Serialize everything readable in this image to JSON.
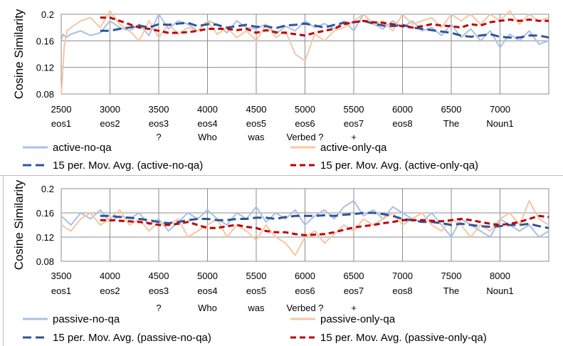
{
  "chart_data": [
    {
      "type": "line",
      "ylabel": "Cosine Similarity",
      "ylim": [
        0.08,
        0.2
      ],
      "y_ticks": [
        "0.08",
        "0.12",
        "0.16",
        "0.2"
      ],
      "xlim": [
        2500,
        7500
      ],
      "x_ticks": [
        "2500",
        "3000",
        "3500",
        "4000",
        "4500",
        "5000",
        "5500",
        "6000",
        "6500",
        "7000"
      ],
      "x_sublabels": [
        [
          "eos1",
          ""
        ],
        [
          "eos2",
          ""
        ],
        [
          "eos3",
          "?"
        ],
        [
          "eos4",
          "Who"
        ],
        [
          "eos5",
          "was"
        ],
        [
          "eos6",
          "Verbed ?"
        ],
        [
          "eos7",
          "+"
        ],
        [
          "eos8",
          ""
        ],
        [
          "The",
          ""
        ],
        [
          "Noun1",
          ""
        ]
      ],
      "grid": true,
      "legend_position": "bottom",
      "series": [
        {
          "name": "active-no-qa",
          "color": "#a9c1e3",
          "style": "solid",
          "x": [
            2500,
            2520,
            2550,
            2600,
            2700,
            2800,
            2900,
            3000,
            3100,
            3200,
            3300,
            3400,
            3500,
            3600,
            3700,
            3800,
            3900,
            4000,
            4100,
            4200,
            4300,
            4400,
            4500,
            4600,
            4700,
            4800,
            4900,
            5000,
            5100,
            5200,
            5300,
            5400,
            5500,
            5600,
            5700,
            5800,
            5900,
            6000,
            6100,
            6200,
            6300,
            6400,
            6500,
            6600,
            6700,
            6800,
            6900,
            7000,
            7100,
            7200,
            7300,
            7400,
            7500
          ],
          "values": [
            0.16,
            0.17,
            0.165,
            0.17,
            0.175,
            0.168,
            0.172,
            0.19,
            0.18,
            0.175,
            0.185,
            0.168,
            0.2,
            0.178,
            0.19,
            0.185,
            0.175,
            0.19,
            0.185,
            0.172,
            0.19,
            0.18,
            0.178,
            0.185,
            0.17,
            0.182,
            0.175,
            0.19,
            0.18,
            0.186,
            0.178,
            0.19,
            0.175,
            0.2,
            0.185,
            0.178,
            0.19,
            0.18,
            0.19,
            0.175,
            0.18,
            0.168,
            0.185,
            0.165,
            0.178,
            0.16,
            0.175,
            0.15,
            0.17,
            0.16,
            0.175,
            0.155,
            0.16
          ]
        },
        {
          "name": "active-only-qa",
          "color": "#f7c6a3",
          "style": "solid",
          "x": [
            2500,
            2510,
            2530,
            2560,
            2600,
            2700,
            2800,
            2900,
            3000,
            3100,
            3200,
            3300,
            3400,
            3500,
            3600,
            3700,
            3800,
            3900,
            4000,
            4100,
            4200,
            4300,
            4400,
            4500,
            4600,
            4700,
            4800,
            4900,
            5000,
            5100,
            5200,
            5300,
            5400,
            5500,
            5600,
            5700,
            5800,
            5900,
            6000,
            6100,
            6200,
            6300,
            6400,
            6500,
            6600,
            6700,
            6800,
            6900,
            7000,
            7100,
            7200,
            7300,
            7400,
            7500
          ],
          "values": [
            0.08,
            0.1,
            0.15,
            0.175,
            0.18,
            0.19,
            0.195,
            0.18,
            0.205,
            0.185,
            0.175,
            0.16,
            0.19,
            0.165,
            0.185,
            0.17,
            0.18,
            0.175,
            0.19,
            0.17,
            0.18,
            0.165,
            0.175,
            0.16,
            0.185,
            0.165,
            0.175,
            0.14,
            0.13,
            0.17,
            0.16,
            0.175,
            0.18,
            0.19,
            0.2,
            0.185,
            0.19,
            0.175,
            0.2,
            0.185,
            0.19,
            0.195,
            0.18,
            0.2,
            0.19,
            0.2,
            0.185,
            0.2,
            0.19,
            0.205,
            0.185,
            0.2,
            0.19,
            0.195
          ]
        },
        {
          "name": "15 per. Mov. Avg. (active-no-qa)",
          "color": "#2f5597",
          "style": "dashed",
          "x": [
            2900,
            3000,
            3100,
            3200,
            3300,
            3400,
            3500,
            3600,
            3700,
            3800,
            3900,
            4000,
            4100,
            4200,
            4300,
            4400,
            4500,
            4600,
            4700,
            4800,
            4900,
            5000,
            5100,
            5200,
            5300,
            5400,
            5500,
            5600,
            5700,
            5800,
            5900,
            6000,
            6100,
            6200,
            6300,
            6400,
            6500,
            6600,
            6700,
            6800,
            6900,
            7000,
            7100,
            7200,
            7300,
            7400,
            7500
          ],
          "values": [
            0.175,
            0.175,
            0.178,
            0.18,
            0.183,
            0.18,
            0.185,
            0.184,
            0.186,
            0.187,
            0.182,
            0.185,
            0.184,
            0.18,
            0.182,
            0.184,
            0.181,
            0.182,
            0.179,
            0.183,
            0.184,
            0.186,
            0.183,
            0.18,
            0.184,
            0.187,
            0.188,
            0.19,
            0.186,
            0.183,
            0.182,
            0.184,
            0.18,
            0.178,
            0.176,
            0.174,
            0.172,
            0.168,
            0.166,
            0.168,
            0.17,
            0.166,
            0.165,
            0.165,
            0.168,
            0.168,
            0.165
          ]
        },
        {
          "name": "15 per. Mov. Avg. (active-only-qa)",
          "color": "#c00000",
          "style": "dashed",
          "x": [
            2900,
            3000,
            3100,
            3200,
            3300,
            3400,
            3500,
            3600,
            3700,
            3800,
            3900,
            4000,
            4100,
            4200,
            4300,
            4400,
            4500,
            4600,
            4700,
            4800,
            4900,
            5000,
            5100,
            5200,
            5300,
            5400,
            5500,
            5600,
            5700,
            5800,
            5900,
            6000,
            6100,
            6200,
            6300,
            6400,
            6500,
            6600,
            6700,
            6800,
            6900,
            7000,
            7100,
            7200,
            7300,
            7400,
            7500
          ],
          "values": [
            0.195,
            0.195,
            0.19,
            0.185,
            0.18,
            0.178,
            0.175,
            0.172,
            0.172,
            0.173,
            0.175,
            0.178,
            0.178,
            0.178,
            0.176,
            0.178,
            0.172,
            0.176,
            0.173,
            0.172,
            0.17,
            0.168,
            0.172,
            0.175,
            0.178,
            0.185,
            0.188,
            0.19,
            0.188,
            0.187,
            0.185,
            0.182,
            0.18,
            0.182,
            0.185,
            0.183,
            0.182,
            0.18,
            0.185,
            0.183,
            0.188,
            0.19,
            0.192,
            0.19,
            0.192,
            0.19,
            0.19
          ]
        }
      ]
    },
    {
      "type": "line",
      "ylabel": "Cosine Similarity",
      "ylim": [
        0.08,
        0.2
      ],
      "y_ticks": [
        "0.08",
        "0.12",
        "0.16",
        "0.2"
      ],
      "xlim": [
        3500,
        8500
      ],
      "x_ticks": [
        "3500",
        "4000",
        "4500",
        "5000",
        "5500",
        "6000",
        "6500",
        "7000",
        "7500",
        "8000"
      ],
      "x_sublabels": [
        [
          "eos1",
          ""
        ],
        [
          "eos2",
          ""
        ],
        [
          "eos3",
          "?"
        ],
        [
          "eos4",
          "Who"
        ],
        [
          "eos5",
          "was"
        ],
        [
          "eos6",
          "Verbed ?"
        ],
        [
          "eos7",
          "+"
        ],
        [
          "eos8",
          ""
        ],
        [
          "The",
          ""
        ],
        [
          "Noun1",
          ""
        ]
      ],
      "grid": true,
      "legend_position": "bottom",
      "series": [
        {
          "name": "passive-no-qa",
          "color": "#a9c1e3",
          "style": "solid",
          "x": [
            3500,
            3600,
            3700,
            3800,
            3900,
            4000,
            4100,
            4200,
            4300,
            4400,
            4500,
            4600,
            4700,
            4800,
            4900,
            5000,
            5100,
            5200,
            5300,
            5400,
            5500,
            5600,
            5700,
            5800,
            5900,
            6000,
            6100,
            6200,
            6300,
            6400,
            6500,
            6600,
            6700,
            6800,
            6900,
            7000,
            7100,
            7200,
            7300,
            7400,
            7500,
            7600,
            7700,
            7800,
            7900,
            8000,
            8100,
            8200,
            8300,
            8400,
            8500
          ],
          "values": [
            0.155,
            0.14,
            0.16,
            0.15,
            0.165,
            0.145,
            0.155,
            0.15,
            0.16,
            0.14,
            0.15,
            0.13,
            0.145,
            0.16,
            0.15,
            0.165,
            0.15,
            0.14,
            0.16,
            0.15,
            0.17,
            0.145,
            0.16,
            0.15,
            0.165,
            0.14,
            0.155,
            0.165,
            0.15,
            0.17,
            0.18,
            0.155,
            0.165,
            0.15,
            0.17,
            0.16,
            0.15,
            0.145,
            0.16,
            0.14,
            0.12,
            0.15,
            0.14,
            0.13,
            0.12,
            0.15,
            0.14,
            0.13,
            0.14,
            0.12,
            0.13
          ]
        },
        {
          "name": "passive-only-qa",
          "color": "#f7c6a3",
          "style": "solid",
          "x": [
            3500,
            3600,
            3700,
            3800,
            3900,
            4000,
            4100,
            4200,
            4300,
            4400,
            4500,
            4600,
            4700,
            4800,
            4900,
            5000,
            5100,
            5200,
            5300,
            5400,
            5500,
            5600,
            5700,
            5800,
            5900,
            6000,
            6100,
            6200,
            6300,
            6400,
            6500,
            6600,
            6700,
            6800,
            6900,
            7000,
            7100,
            7200,
            7300,
            7400,
            7500,
            7600,
            7700,
            7800,
            7900,
            8000,
            8100,
            8200,
            8300,
            8400,
            8500
          ],
          "values": [
            0.14,
            0.13,
            0.15,
            0.16,
            0.14,
            0.15,
            0.165,
            0.14,
            0.15,
            0.13,
            0.145,
            0.14,
            0.15,
            0.12,
            0.13,
            0.14,
            0.15,
            0.12,
            0.14,
            0.13,
            0.115,
            0.14,
            0.12,
            0.11,
            0.09,
            0.12,
            0.13,
            0.11,
            0.125,
            0.14,
            0.13,
            0.15,
            0.14,
            0.15,
            0.16,
            0.14,
            0.15,
            0.16,
            0.14,
            0.13,
            0.15,
            0.14,
            0.12,
            0.14,
            0.13,
            0.15,
            0.16,
            0.14,
            0.18,
            0.15,
            0.14
          ]
        },
        {
          "name": "15 per. Mov. Avg. (passive-no-qa)",
          "color": "#2f5597",
          "style": "dashed",
          "x": [
            3900,
            4000,
            4100,
            4200,
            4300,
            4400,
            4500,
            4600,
            4700,
            4800,
            4900,
            5000,
            5100,
            5200,
            5300,
            5400,
            5500,
            5600,
            5700,
            5800,
            5900,
            6000,
            6100,
            6200,
            6300,
            6400,
            6500,
            6600,
            6700,
            6800,
            6900,
            7000,
            7100,
            7200,
            7300,
            7400,
            7500,
            7600,
            7700,
            7800,
            7900,
            8000,
            8100,
            8200,
            8300,
            8400,
            8500
          ],
          "values": [
            0.155,
            0.155,
            0.153,
            0.152,
            0.15,
            0.148,
            0.145,
            0.143,
            0.145,
            0.148,
            0.15,
            0.15,
            0.148,
            0.148,
            0.15,
            0.15,
            0.152,
            0.152,
            0.15,
            0.153,
            0.155,
            0.155,
            0.155,
            0.156,
            0.155,
            0.157,
            0.158,
            0.16,
            0.16,
            0.158,
            0.155,
            0.15,
            0.148,
            0.145,
            0.145,
            0.143,
            0.14,
            0.142,
            0.14,
            0.138,
            0.137,
            0.138,
            0.14,
            0.14,
            0.142,
            0.138,
            0.135
          ]
        },
        {
          "name": "15 per. Mov. Avg. (passive-only-qa)",
          "color": "#c00000",
          "style": "dashed",
          "x": [
            3900,
            4000,
            4100,
            4200,
            4300,
            4400,
            4500,
            4600,
            4700,
            4800,
            4900,
            5000,
            5100,
            5200,
            5300,
            5400,
            5500,
            5600,
            5700,
            5800,
            5900,
            6000,
            6100,
            6200,
            6300,
            6400,
            6500,
            6600,
            6700,
            6800,
            6900,
            7000,
            7100,
            7200,
            7300,
            7400,
            7500,
            7600,
            7700,
            7800,
            7900,
            8000,
            8100,
            8200,
            8300,
            8400,
            8500
          ],
          "values": [
            0.148,
            0.148,
            0.147,
            0.146,
            0.145,
            0.143,
            0.14,
            0.14,
            0.142,
            0.145,
            0.14,
            0.135,
            0.135,
            0.138,
            0.14,
            0.137,
            0.135,
            0.13,
            0.128,
            0.128,
            0.125,
            0.123,
            0.124,
            0.125,
            0.128,
            0.132,
            0.136,
            0.138,
            0.14,
            0.143,
            0.145,
            0.148,
            0.148,
            0.148,
            0.147,
            0.146,
            0.148,
            0.15,
            0.148,
            0.145,
            0.142,
            0.14,
            0.142,
            0.145,
            0.15,
            0.155,
            0.153
          ]
        }
      ]
    }
  ]
}
